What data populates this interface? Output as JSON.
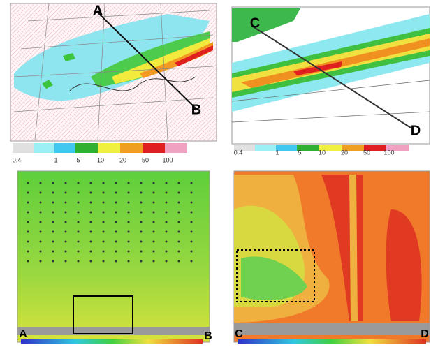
{
  "panels": [
    {
      "point_labels": [
        "A",
        "B"
      ],
      "colorbar": {
        "labels": [
          "0.4",
          "1",
          "5",
          "10",
          "20",
          "50",
          "100"
        ]
      }
    },
    {
      "point_labels": [
        "C",
        "D"
      ],
      "colorbar": {
        "labels": [
          "0.4",
          "1",
          "5",
          "10",
          "20",
          "50",
          "100"
        ]
      }
    },
    {
      "point_labels": [
        "A",
        "B"
      ]
    },
    {
      "point_labels": [
        "C",
        "D"
      ]
    }
  ]
}
